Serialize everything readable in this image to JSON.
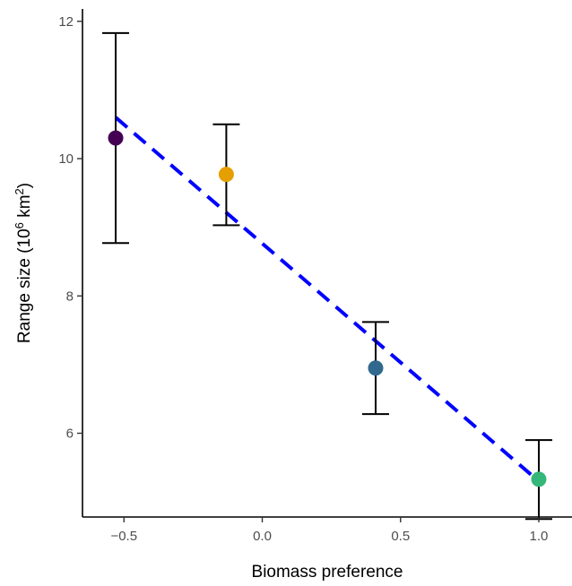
{
  "chart_data": {
    "type": "scatter",
    "xlabel": "Biomass preference",
    "ylabel": {
      "prefix": "Range size (10",
      "sup1": "6",
      "middle": " km",
      "sup2": "2",
      "suffix": ")"
    },
    "xlim": [
      -0.65,
      1.12
    ],
    "ylim": [
      4.78,
      12.18
    ],
    "x_ticks": [
      {
        "value": -0.5,
        "label": "−0.5"
      },
      {
        "value": 0.0,
        "label": "0.0"
      },
      {
        "value": 0.5,
        "label": "0.5"
      },
      {
        "value": 1.0,
        "label": "1.0"
      }
    ],
    "y_ticks": [
      {
        "value": 6,
        "label": "6"
      },
      {
        "value": 8,
        "label": "8"
      },
      {
        "value": 10,
        "label": "10"
      },
      {
        "value": 12,
        "label": "12"
      }
    ],
    "grid": false,
    "legend": "none",
    "points": [
      {
        "x": -0.53,
        "y": 10.3,
        "ymin": 8.77,
        "ymax": 11.83,
        "color": "#440154"
      },
      {
        "x": -0.13,
        "y": 9.77,
        "ymin": 9.03,
        "ymax": 10.5,
        "color": "#E69F00"
      },
      {
        "x": 0.41,
        "y": 6.95,
        "ymin": 6.28,
        "ymax": 7.62,
        "color": "#31688E"
      },
      {
        "x": 1.0,
        "y": 5.33,
        "ymin": 4.75,
        "ymax": 5.9,
        "color": "#35B779"
      }
    ],
    "trend_line": {
      "x": [
        -0.53,
        1.0
      ],
      "y": [
        10.6,
        5.3
      ],
      "color": "#0000FF",
      "style": "dashed"
    }
  }
}
